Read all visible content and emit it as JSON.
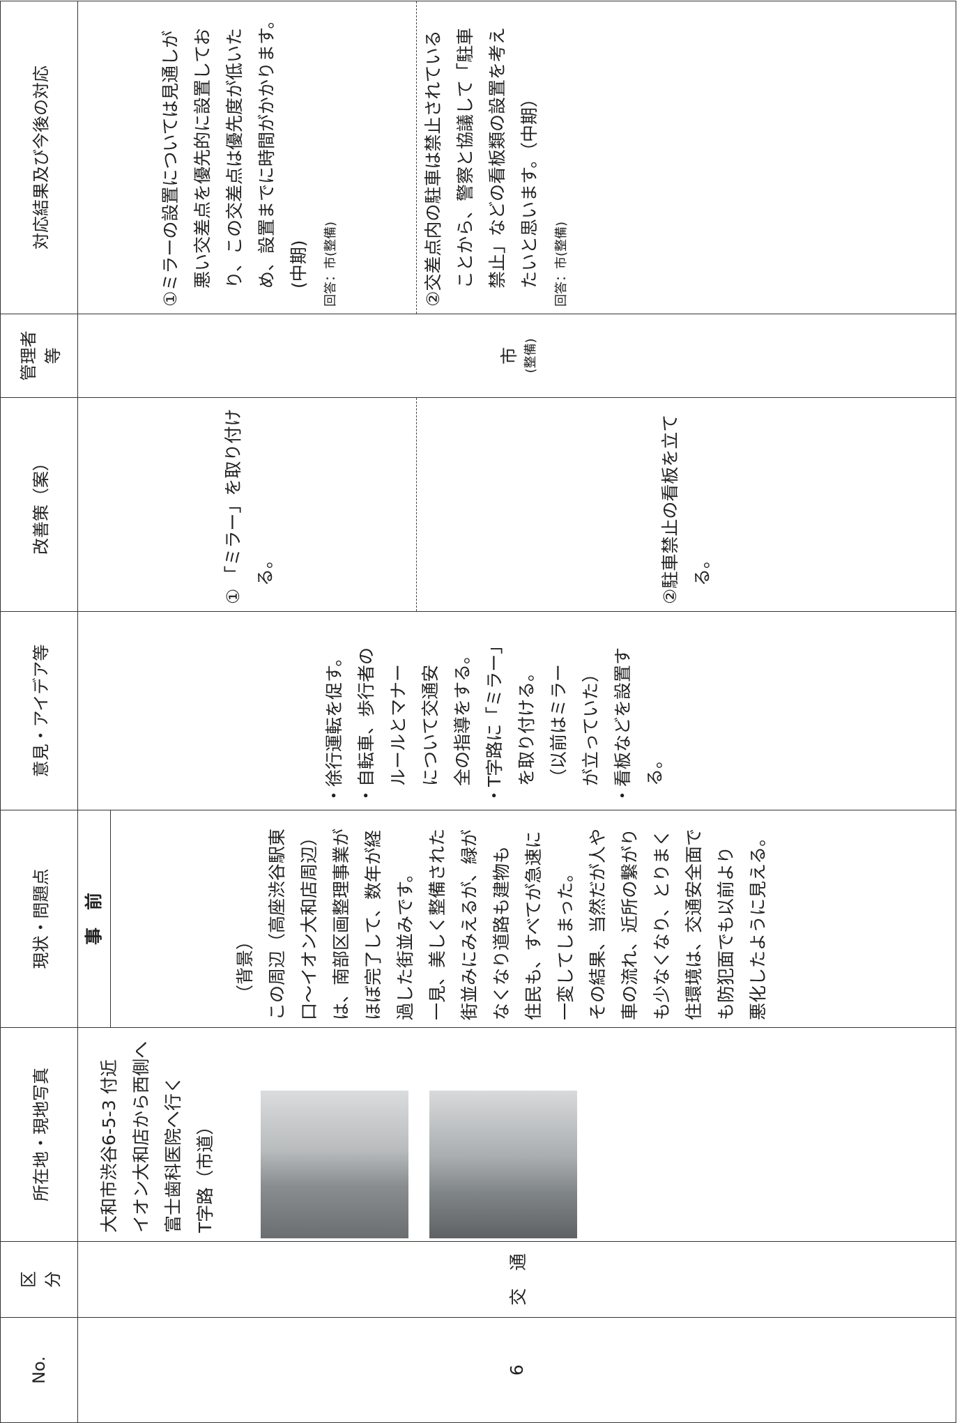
{
  "header": {
    "no": "No.",
    "category": [
      "区",
      "分"
    ],
    "location": "所在地・現地写真",
    "situation": "現状・問題点",
    "opinion": "意見・アイデア等",
    "proposal": "改善策（案）",
    "manager": [
      "管理者",
      "等"
    ],
    "response": "対応結果及び今後の対応"
  },
  "row": {
    "no": "6",
    "category": "交　通",
    "location": [
      "大和市渋谷6-5-3 付近",
      "イオン大和店から西側へ",
      "富士歯科医院へ行く",
      "T字路（市道）"
    ],
    "phase": "事　前",
    "situation": [
      "（背景）",
      "この周辺（高座渋谷駅東",
      "口～イオン大和店周辺）",
      "は、南部区画整理事業が",
      "ほぼ完了して、数年が経",
      "過した街並みです。",
      "一見、美しく整備された",
      "街並みにみえるが、緑が",
      "なくなり道路も建物も",
      "住民も、すべてが急速に",
      "一変してしまった。",
      "その結果、当然だが人や",
      "車の流れ、近所の繋がり",
      "も少なくなり、とりまく",
      "住環境は、交通安全面で",
      "も防犯面でも以前より",
      "悪化したように見える。"
    ],
    "opinions": [
      [
        "・徐行運転を促す。"
      ],
      [
        "・自転車、歩行者の",
        "ルールとマナー",
        "について交通安",
        "全の指導をする。"
      ],
      [
        "・T字路に「ミラー」",
        "を取り付ける。",
        "（以前はミラー",
        "が立っていた）"
      ],
      [
        "・看板などを設置す",
        "る。"
      ]
    ],
    "proposals": [
      [
        "① 「ミラー」を取り付け",
        "る。"
      ],
      [
        "②駐車禁止の看板を立て",
        "る。"
      ]
    ],
    "manager": [
      "市",
      "(整備)"
    ],
    "responses": [
      {
        "lines": [
          "①ミラーの設置については見通しが",
          "悪い交差点を優先的に設置してお",
          "り、この交差点は優先度が低いた",
          "め、設置までに時間がかかります。",
          "(中期)"
        ],
        "answer": "回答：市(整備)"
      },
      {
        "lines": [
          "②交差点内の駐車は禁止されている",
          "ことから、警察と協議して「駐車",
          "禁止」などの看板類の設置を考え",
          "たいと思います。（中期）"
        ],
        "answer": "回答：市(整備)"
      }
    ]
  }
}
